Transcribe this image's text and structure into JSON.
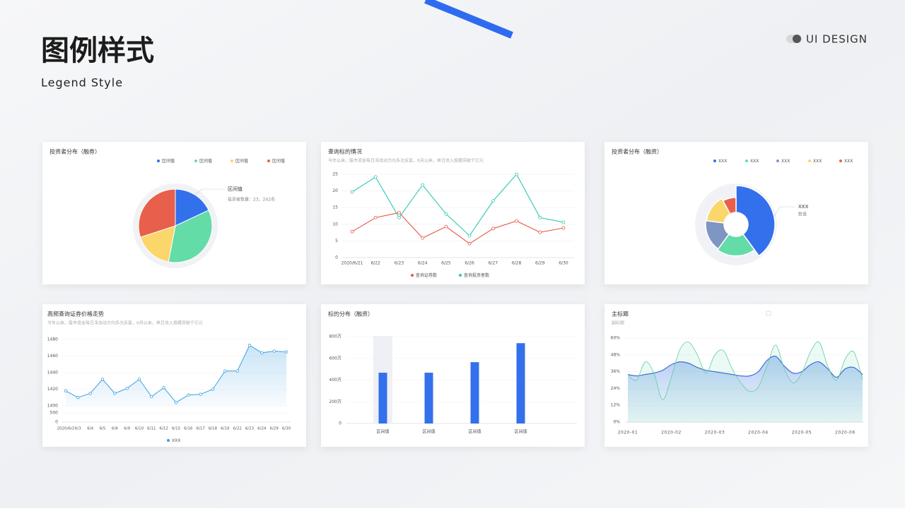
{
  "header": {
    "title": "图例样式",
    "subtitle": "Legend Style",
    "badge": "UI DESIGN"
  },
  "chart_data": [
    {
      "type": "pie",
      "title": "投资者分布（融券）",
      "categories": [
        "区间值",
        "区间值",
        "区间值",
        "区间值"
      ],
      "values": [
        18,
        35,
        17,
        30
      ],
      "colors": [
        "#3370eb",
        "#63dca8",
        "#fad66b",
        "#e8604c"
      ],
      "annotation": {
        "label": "区间值",
        "text": "投资者数量：23，242名"
      }
    },
    {
      "type": "line",
      "title": "查询标的情况",
      "subtitle": "今年以来，股市资金每日净流动方向多次反复，6月以来，单日流入规模突破千亿元",
      "categories": [
        "2020/6/21",
        "6/22",
        "6/23",
        "6/24",
        "6/25",
        "6/26",
        "6/27",
        "6/28",
        "6/29",
        "6/30"
      ],
      "ylim": [
        0,
        25
      ],
      "yticks": [
        0,
        5,
        10,
        15,
        20,
        25
      ],
      "grid": true,
      "series": [
        {
          "name": "查询证券数",
          "color": "#e8584c",
          "values": [
            7.8,
            12,
            13.5,
            5.9,
            9.3,
            4.2,
            8.7,
            11,
            7.6,
            8.9
          ]
        },
        {
          "name": "查询投资者数",
          "color": "#2ec7b0",
          "values": [
            19.7,
            24.2,
            12,
            21.8,
            13.1,
            6.6,
            17,
            25,
            12,
            10.6
          ]
        }
      ]
    },
    {
      "type": "rose",
      "title": "投资者分布（融资）",
      "categories": [
        "XXX",
        "XXX",
        "XXX",
        "XXX",
        "XXX"
      ],
      "values": [
        40,
        20,
        17,
        15,
        8
      ],
      "colors": [
        "#3370eb",
        "#63dca8",
        "#7f95c3",
        "#fad66b",
        "#e8604c"
      ],
      "annotation": {
        "label": "XXX",
        "text": "数值"
      }
    },
    {
      "type": "area",
      "title": "高频查询证券价格走势",
      "subtitle": "今年以来，股市资金每日净流动方向多次反复，6月以来，单日流入规模突破千亿元",
      "categories": [
        "2020/6/2",
        "6/3",
        "6/4",
        "6/5",
        "6/8",
        "6/9",
        "6/10",
        "6/11",
        "6/12",
        "6/15",
        "6/16",
        "6/17",
        "6/18",
        "6/19",
        "6/22",
        "6/23",
        "6/24",
        "6/29",
        "6/30"
      ],
      "ylim": [
        0,
        1480
      ],
      "ybreak": [
        500,
        1400
      ],
      "yticks": [
        0,
        500,
        1400,
        1420,
        1440,
        1460,
        1480
      ],
      "grid": true,
      "series": [
        {
          "name": "XXX",
          "color": "#3ea0e0",
          "values": [
            1418,
            1410,
            1415,
            1432,
            1415,
            1421,
            1432,
            1411,
            1422,
            1404,
            1413,
            1414,
            1420,
            1442,
            1442,
            1473,
            1464,
            1466,
            1465
          ]
        }
      ]
    },
    {
      "type": "bar",
      "title": "标的分布（融资）",
      "categories": [
        "区间值",
        "区间值",
        "区间值",
        "区间值"
      ],
      "values": [
        468,
        468,
        565,
        740
      ],
      "color": "#3370eb",
      "ylim": [
        0,
        800
      ],
      "yticks": [
        0,
        {
          "value": 200,
          "label": "200万"
        },
        {
          "value": 400,
          "label": "400万"
        },
        {
          "value": 600,
          "label": "600万"
        },
        {
          "value": 800,
          "label": "800万"
        }
      ],
      "grid": true
    },
    {
      "type": "smooth-area",
      "title": "主标题",
      "subtitle": "副标题",
      "categories": [
        "2020-01",
        null,
        null,
        null,
        null,
        "2020-02",
        null,
        null,
        null,
        null,
        "2020-03",
        null,
        null,
        null,
        null,
        "2020-04",
        null,
        null,
        null,
        null,
        "2020-05",
        null,
        null,
        null,
        null,
        "2020-06",
        null,
        null
      ],
      "ylim": [
        0,
        60
      ],
      "yticks": [
        {
          "value": 0,
          "label": "0%"
        },
        {
          "value": 12,
          "label": "12%"
        },
        {
          "value": 24,
          "label": "24%"
        },
        {
          "value": 36,
          "label": "36%"
        },
        {
          "value": 48,
          "label": "48%"
        },
        {
          "value": 60,
          "label": "60%"
        }
      ],
      "grid": true,
      "series": [
        {
          "color": "#2f63d6",
          "values": [
            34,
            33,
            34,
            35,
            37,
            41,
            43,
            42,
            39,
            37,
            36,
            35,
            34,
            33,
            33,
            36,
            44,
            47,
            40,
            35,
            36,
            41,
            43,
            38,
            32,
            38,
            39,
            34
          ]
        },
        {
          "color": "#5fcf9a",
          "values": [
            34,
            30,
            43,
            35,
            16,
            32,
            52,
            57,
            48,
            35,
            48,
            51,
            38,
            28,
            22,
            25,
            40,
            55,
            38,
            28,
            35,
            50,
            57,
            40,
            30,
            45,
            50,
            30
          ]
        }
      ]
    }
  ]
}
